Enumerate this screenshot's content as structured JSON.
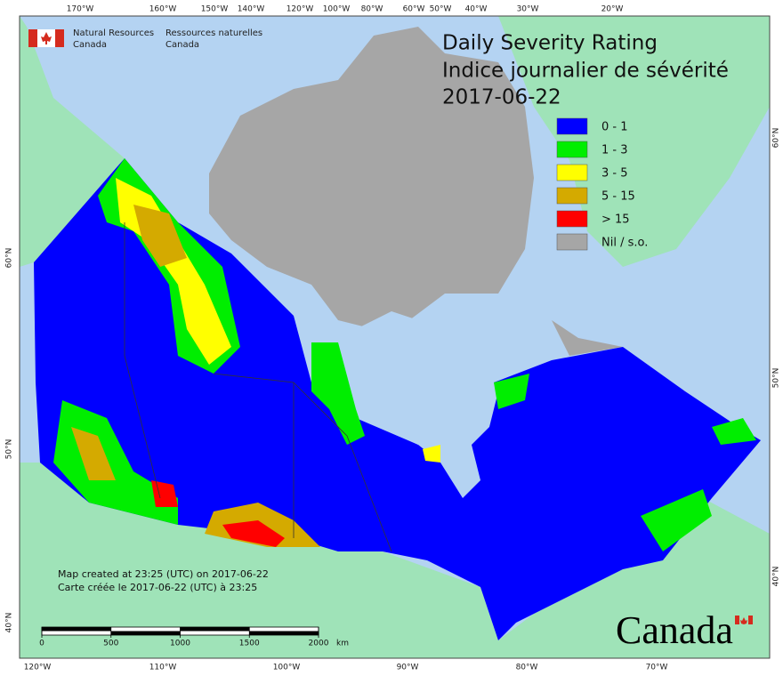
{
  "header": {
    "title": "Daily Severity Rating",
    "subtitle": "Indice journalier de sévérité",
    "date": "2017-06-22"
  },
  "agency": {
    "en": [
      "Natural Resources",
      "Canada"
    ],
    "fr": [
      "Ressources naturelles",
      "Canada"
    ]
  },
  "legend": [
    {
      "label": "0 - 1",
      "color": "#0000ff"
    },
    {
      "label": "1 - 3",
      "color": "#00ee00"
    },
    {
      "label": "3 - 5",
      "color": "#ffff00"
    },
    {
      "label": "5 - 15",
      "color": "#d4aa00"
    },
    {
      "label": "> 15",
      "color": "#ff0000"
    },
    {
      "label": "Nil / s.o.",
      "color": "#a6a6a6"
    }
  ],
  "graticule": {
    "top": [
      "170°W",
      "160°W",
      "150°W",
      "140°W",
      "120°W",
      "100°W",
      "80°W",
      "60°W",
      "50°W",
      "40°W",
      "30°W",
      "20°W"
    ],
    "bottom": [
      "120°W",
      "110°W",
      "100°W",
      "90°W",
      "80°W",
      "70°W"
    ],
    "left": [
      "60°N",
      "50°N",
      "40°N"
    ],
    "right": [
      "60°N",
      "50°N",
      "40°N"
    ]
  },
  "scale_bar": {
    "ticks": [
      0,
      500,
      1000,
      1500,
      2000
    ],
    "unit": "km"
  },
  "credits": [
    "Map created at 23:25 (UTC) on 2017-06-22",
    "Carte créée le 2017-06-22 (UTC) à 23:25"
  ],
  "wordmark": "Canada"
}
